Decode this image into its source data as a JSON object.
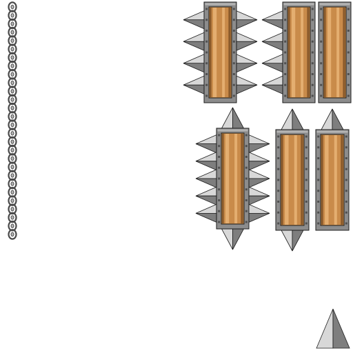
{
  "sprite_sheet": {
    "background": "#ffffff",
    "colors": {
      "metal_dark": "#5d5d5d",
      "metal_mid": "#8c8c8c",
      "metal_light": "#b4b4b4",
      "spike_light": "#d8d8d8",
      "spike_shadow": "#7e7e7e",
      "rivet": "#4f4f4f",
      "wood_dark": "#8a5a2b",
      "wood_mid": "#c98b4a",
      "wood_light": "#e4ae70",
      "outline": "#1c1c1c",
      "chain": "#4a4a4a"
    },
    "sprites": [
      {
        "name": "chain-vertical",
        "icon": "chain-icon",
        "links": 28
      },
      {
        "name": "spike-log-sides",
        "icon": "spiked-log-icon",
        "spikes": "left-right",
        "spikes_per_side": 4
      },
      {
        "name": "spike-log-left",
        "icon": "spiked-log-icon",
        "spikes": "left",
        "spikes_per_side": 4
      },
      {
        "name": "plain-log-tall",
        "icon": "log-icon",
        "spikes": "none"
      },
      {
        "name": "spike-log-all",
        "icon": "spiked-log-icon",
        "spikes": "left-right-top-bottom",
        "spikes_per_side": 5
      },
      {
        "name": "spike-log-top-bottom",
        "icon": "spiked-log-icon",
        "spikes": "top-bottom"
      },
      {
        "name": "spike-log-top",
        "icon": "spiked-log-icon",
        "spikes": "top"
      },
      {
        "name": "single-spike",
        "icon": "spike-icon",
        "spikes": "single"
      }
    ]
  }
}
